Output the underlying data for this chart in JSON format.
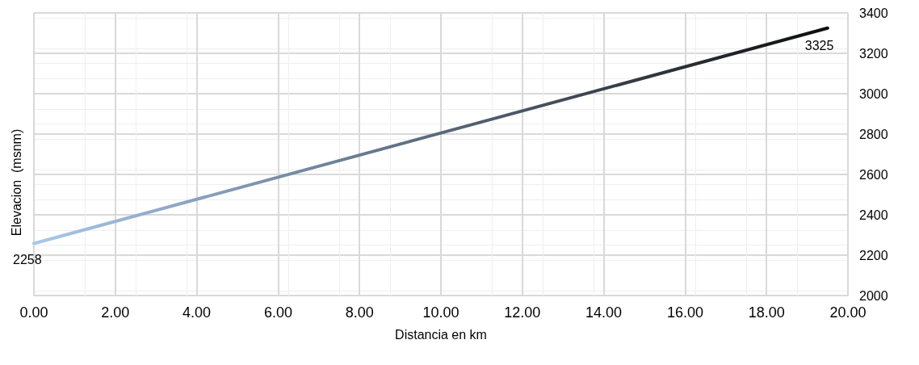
{
  "chart_data": {
    "type": "line",
    "xlabel": "Distancia en km",
    "ylabel": "Elevacion  (msnm)",
    "x": [
      0,
      19.5
    ],
    "series": [
      {
        "colors": [
          "#a9c8ec",
          "#0d0d0d"
        ],
        "values": [
          2258,
          3325
        ],
        "value_labels": [
          "2258",
          "3325"
        ]
      }
    ],
    "xlim": [
      0,
      20
    ],
    "xticks": [
      {
        "value": 0,
        "label": "0.00"
      },
      {
        "value": 2,
        "label": "2.00"
      },
      {
        "value": 4,
        "label": "4.00"
      },
      {
        "value": 6,
        "label": "6.00"
      },
      {
        "value": 8,
        "label": "8.00"
      },
      {
        "value": 10,
        "label": "10.00"
      },
      {
        "value": 12,
        "label": "12.00"
      },
      {
        "value": 14,
        "label": "14.00"
      },
      {
        "value": 16,
        "label": "16.00"
      },
      {
        "value": 18,
        "label": "18.00"
      },
      {
        "value": 20,
        "label": "20.00"
      }
    ],
    "ylim": [
      2000,
      3400
    ],
    "yticks": [
      2000,
      2200,
      2400,
      2600,
      2800,
      3000,
      3200,
      3400
    ],
    "grid": true,
    "marker": "none",
    "line_style": "solid"
  }
}
